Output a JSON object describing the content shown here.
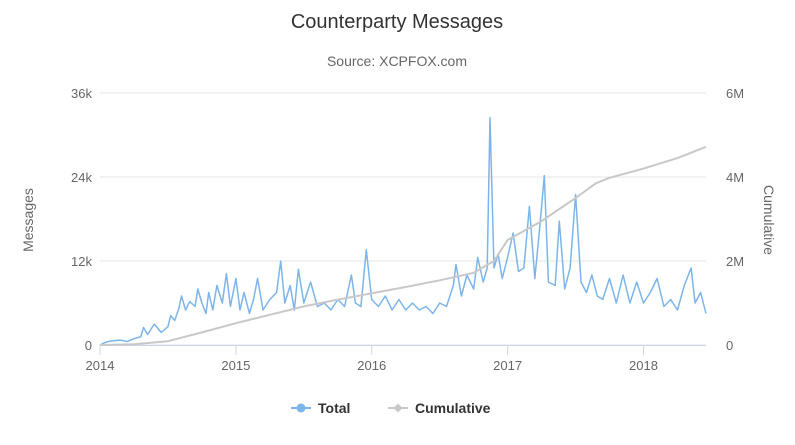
{
  "chart_data": {
    "type": "line",
    "title": "Counterparty Messages",
    "subtitle": "Source: XCPFOX.com",
    "x_ticks": [
      "2014",
      "2015",
      "2016",
      "2017",
      "2018"
    ],
    "xlim": [
      2014.0,
      2018.46
    ],
    "y_left": {
      "label": "Messages",
      "ticks": [
        "0",
        "12k",
        "24k",
        "36k"
      ],
      "ylim": [
        0,
        36000
      ]
    },
    "y_right": {
      "label": "Cumulative",
      "ticks": [
        "0",
        "2M",
        "4M",
        "6M"
      ],
      "ylim": [
        0,
        6000000
      ]
    },
    "legend_position": "bottom-center",
    "grid": true,
    "series": [
      {
        "name": "Total",
        "axis": "left",
        "color": "#7cb5ec",
        "points": [
          [
            2014.0,
            0
          ],
          [
            2014.03,
            300
          ],
          [
            2014.06,
            500
          ],
          [
            2014.1,
            600
          ],
          [
            2014.15,
            700
          ],
          [
            2014.2,
            500
          ],
          [
            2014.25,
            900
          ],
          [
            2014.3,
            1200
          ],
          [
            2014.32,
            2500
          ],
          [
            2014.35,
            1500
          ],
          [
            2014.4,
            3000
          ],
          [
            2014.45,
            1800
          ],
          [
            2014.5,
            2600
          ],
          [
            2014.52,
            4200
          ],
          [
            2014.55,
            3500
          ],
          [
            2014.58,
            5200
          ],
          [
            2014.6,
            7000
          ],
          [
            2014.63,
            5000
          ],
          [
            2014.66,
            6200
          ],
          [
            2014.7,
            5500
          ],
          [
            2014.72,
            8000
          ],
          [
            2014.75,
            6000
          ],
          [
            2014.78,
            4500
          ],
          [
            2014.8,
            7500
          ],
          [
            2014.83,
            5000
          ],
          [
            2014.86,
            8500
          ],
          [
            2014.9,
            6000
          ],
          [
            2014.93,
            10200
          ],
          [
            2014.96,
            5500
          ],
          [
            2015.0,
            9500
          ],
          [
            2015.03,
            5000
          ],
          [
            2015.06,
            7500
          ],
          [
            2015.1,
            4500
          ],
          [
            2015.13,
            6500
          ],
          [
            2015.16,
            9500
          ],
          [
            2015.2,
            5000
          ],
          [
            2015.25,
            6500
          ],
          [
            2015.3,
            7500
          ],
          [
            2015.33,
            12000
          ],
          [
            2015.36,
            6000
          ],
          [
            2015.4,
            8500
          ],
          [
            2015.43,
            5000
          ],
          [
            2015.46,
            10800
          ],
          [
            2015.5,
            6000
          ],
          [
            2015.55,
            9000
          ],
          [
            2015.6,
            5500
          ],
          [
            2015.65,
            6000
          ],
          [
            2015.7,
            5000
          ],
          [
            2015.75,
            6500
          ],
          [
            2015.8,
            5500
          ],
          [
            2015.85,
            10000
          ],
          [
            2015.88,
            6000
          ],
          [
            2015.92,
            5500
          ],
          [
            2015.96,
            13600
          ],
          [
            2016.0,
            6500
          ],
          [
            2016.05,
            5500
          ],
          [
            2016.1,
            7000
          ],
          [
            2016.15,
            5000
          ],
          [
            2016.2,
            6500
          ],
          [
            2016.25,
            5000
          ],
          [
            2016.3,
            6000
          ],
          [
            2016.35,
            5000
          ],
          [
            2016.4,
            5500
          ],
          [
            2016.45,
            4500
          ],
          [
            2016.5,
            6000
          ],
          [
            2016.55,
            5500
          ],
          [
            2016.6,
            8500
          ],
          [
            2016.62,
            11500
          ],
          [
            2016.66,
            7000
          ],
          [
            2016.7,
            10000
          ],
          [
            2016.75,
            8000
          ],
          [
            2016.78,
            12500
          ],
          [
            2016.82,
            9000
          ],
          [
            2016.85,
            11000
          ],
          [
            2016.87,
            32500
          ],
          [
            2016.9,
            11000
          ],
          [
            2016.93,
            13000
          ],
          [
            2016.96,
            9500
          ],
          [
            2017.0,
            12500
          ],
          [
            2017.04,
            16000
          ],
          [
            2017.08,
            10500
          ],
          [
            2017.12,
            11000
          ],
          [
            2017.16,
            19800
          ],
          [
            2017.2,
            9500
          ],
          [
            2017.24,
            17500
          ],
          [
            2017.27,
            24200
          ],
          [
            2017.3,
            9000
          ],
          [
            2017.35,
            8500
          ],
          [
            2017.38,
            17700
          ],
          [
            2017.42,
            8000
          ],
          [
            2017.46,
            11000
          ],
          [
            2017.5,
            21500
          ],
          [
            2017.54,
            9000
          ],
          [
            2017.58,
            7500
          ],
          [
            2017.62,
            10000
          ],
          [
            2017.66,
            7000
          ],
          [
            2017.7,
            6500
          ],
          [
            2017.75,
            9500
          ],
          [
            2017.8,
            6000
          ],
          [
            2017.85,
            10000
          ],
          [
            2017.9,
            6000
          ],
          [
            2017.95,
            9000
          ],
          [
            2018.0,
            6000
          ],
          [
            2018.05,
            7500
          ],
          [
            2018.1,
            9500
          ],
          [
            2018.15,
            5500
          ],
          [
            2018.2,
            6500
          ],
          [
            2018.25,
            5000
          ],
          [
            2018.3,
            8500
          ],
          [
            2018.35,
            11000
          ],
          [
            2018.38,
            6000
          ],
          [
            2018.42,
            7500
          ],
          [
            2018.46,
            4500
          ]
        ]
      },
      {
        "name": "Cumulative",
        "axis": "right",
        "color": "#c8c8c8",
        "points": [
          [
            2014.0,
            0
          ],
          [
            2014.25,
            20000
          ],
          [
            2014.5,
            90000
          ],
          [
            2014.75,
            300000
          ],
          [
            2015.0,
            520000
          ],
          [
            2015.25,
            720000
          ],
          [
            2015.5,
            920000
          ],
          [
            2015.75,
            1080000
          ],
          [
            2016.0,
            1230000
          ],
          [
            2016.25,
            1380000
          ],
          [
            2016.5,
            1540000
          ],
          [
            2016.75,
            1720000
          ],
          [
            2016.9,
            2000000
          ],
          [
            2017.0,
            2500000
          ],
          [
            2017.25,
            2950000
          ],
          [
            2017.5,
            3500000
          ],
          [
            2017.65,
            3850000
          ],
          [
            2017.75,
            3980000
          ],
          [
            2018.0,
            4200000
          ],
          [
            2018.25,
            4450000
          ],
          [
            2018.46,
            4720000
          ]
        ]
      }
    ]
  }
}
